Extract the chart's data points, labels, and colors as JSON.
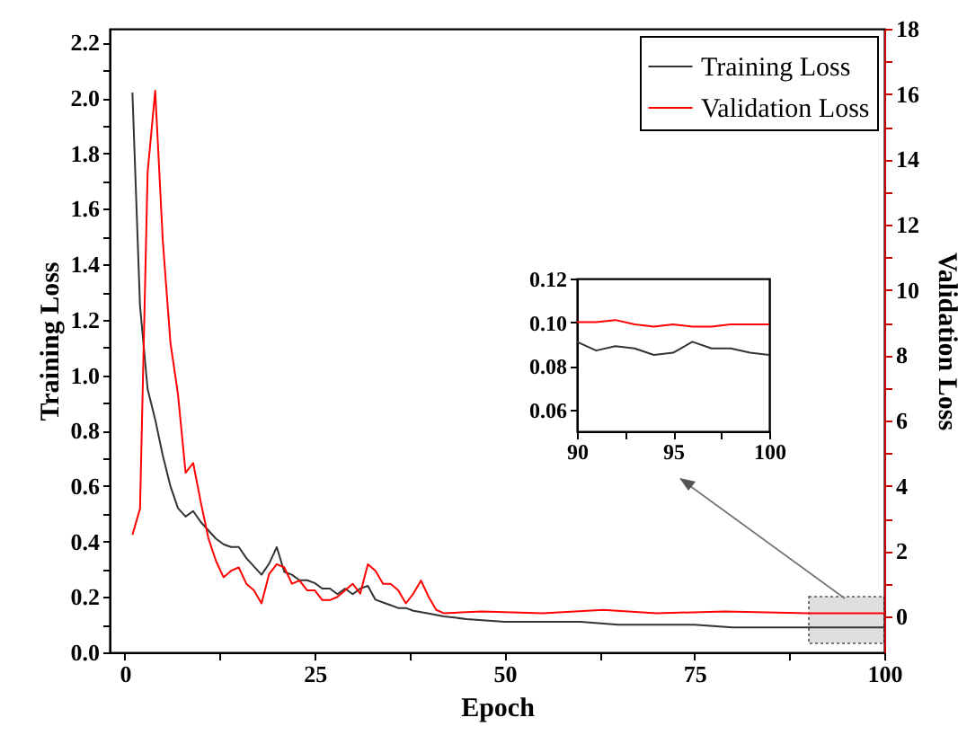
{
  "chart_data": [
    {
      "type": "line",
      "xlabel": "Epoch",
      "ylabel": "Training Loss",
      "y2label": "Validation Loss",
      "legend": "top right",
      "xlim": [
        -2,
        100
      ],
      "xticks": [
        0,
        {
          "value": 12.5,
          "label": null
        },
        25,
        {
          "value": 37.5,
          "label": null
        },
        50,
        {
          "value": 62.5,
          "label": null
        },
        75,
        {
          "value": 87.5,
          "label": null
        },
        100
      ],
      "ylim": [
        0,
        2.25
      ],
      "yticks": [
        {
          "value": 0,
          "label": "0.0"
        },
        {
          "value": 0.1,
          "label": null
        },
        0.2,
        {
          "value": 0.3,
          "label": null
        },
        0.4,
        {
          "value": 0.5,
          "label": null
        },
        0.6,
        {
          "value": 0.7,
          "label": null
        },
        0.8,
        {
          "value": 0.9,
          "label": null
        },
        {
          "value": 1,
          "label": "1.0"
        },
        {
          "value": 1.1,
          "label": null
        },
        1.2,
        {
          "value": 1.3,
          "label": null
        },
        1.4,
        {
          "value": 1.5,
          "label": null
        },
        1.6,
        {
          "value": 1.7,
          "label": null
        },
        1.8,
        {
          "value": 1.9,
          "label": null
        },
        {
          "value": 2,
          "label": "2.0"
        },
        {
          "value": 2.1,
          "label": null
        },
        2.2
      ],
      "y2lim": [
        -1.1,
        18
      ],
      "y2ticks": [
        0,
        {
          "value": 1,
          "label": null
        },
        2,
        {
          "value": 3,
          "label": null
        },
        4,
        {
          "value": 5,
          "label": null
        },
        6,
        {
          "value": 7,
          "label": null
        },
        8,
        {
          "value": 9,
          "label": null
        },
        10,
        {
          "value": 11,
          "label": null
        },
        12,
        {
          "value": 13,
          "label": null
        },
        14,
        {
          "value": 15,
          "label": null
        },
        16,
        {
          "value": 17,
          "label": null
        },
        18
      ],
      "series": [
        {
          "name": "Training Loss",
          "color": "#333333",
          "x": [
            1,
            2,
            3,
            4,
            5,
            6,
            7,
            8,
            9,
            10,
            11,
            12,
            13,
            14,
            15,
            16,
            17,
            18,
            19,
            20,
            21,
            22,
            23,
            24,
            25,
            26,
            27,
            28,
            29,
            30,
            31,
            32,
            33,
            34,
            35,
            36,
            37,
            38,
            40,
            42,
            45,
            50,
            55,
            60,
            65,
            70,
            75,
            80,
            85,
            90,
            100
          ],
          "values": [
            2.02,
            1.25,
            0.95,
            0.84,
            0.71,
            0.6,
            0.52,
            0.49,
            0.51,
            0.47,
            0.44,
            0.41,
            0.39,
            0.38,
            0.38,
            0.34,
            0.31,
            0.28,
            0.32,
            0.38,
            0.29,
            0.28,
            0.26,
            0.26,
            0.25,
            0.23,
            0.23,
            0.21,
            0.23,
            0.21,
            0.23,
            0.24,
            0.19,
            0.18,
            0.17,
            0.16,
            0.16,
            0.15,
            0.14,
            0.13,
            0.12,
            0.11,
            0.11,
            0.11,
            0.1,
            0.1,
            0.1,
            0.09,
            0.09,
            0.09,
            0.09
          ]
        },
        {
          "name": "Validation Loss",
          "color": "#ff0000",
          "axis": "y2",
          "x": [
            1,
            2,
            3,
            4,
            5,
            6,
            7,
            8,
            9,
            10,
            11,
            12,
            13,
            14,
            15,
            16,
            17,
            18,
            19,
            20,
            21,
            22,
            23,
            24,
            25,
            26,
            27,
            28,
            29,
            30,
            31,
            32,
            33,
            34,
            35,
            36,
            37,
            38,
            39,
            40,
            41,
            42,
            47,
            55,
            63,
            70,
            79,
            90,
            100
          ],
          "values": [
            2.5,
            3.3,
            13.6,
            16.1,
            11.5,
            8.4,
            6.8,
            4.4,
            4.7,
            3.5,
            2.4,
            1.7,
            1.2,
            1.4,
            1.5,
            1.0,
            0.8,
            0.4,
            1.3,
            1.6,
            1.5,
            1.0,
            1.1,
            0.8,
            0.8,
            0.5,
            0.5,
            0.6,
            0.8,
            1.0,
            0.7,
            1.6,
            1.4,
            1.0,
            1.0,
            0.8,
            0.4,
            0.7,
            1.1,
            0.6,
            0.2,
            0.1,
            0.15,
            0.1,
            0.2,
            0.1,
            0.15,
            0.1,
            0.1
          ]
        }
      ]
    },
    {
      "type": "line",
      "xlim": [
        90,
        100
      ],
      "xticks": [
        90,
        {
          "value": 92.5,
          "label": null
        },
        95,
        {
          "value": 97.5,
          "label": null
        },
        100
      ],
      "ylim": [
        0.05,
        0.12
      ],
      "yticks": [
        0.06,
        0.08,
        {
          "value": 0.1,
          "label": "0.10"
        },
        0.12
      ],
      "series": [
        {
          "color": "#333333",
          "x": [
            90,
            91,
            92,
            93,
            94,
            95,
            96,
            97,
            98,
            99,
            100
          ],
          "values": [
            0.091,
            0.087,
            0.089,
            0.088,
            0.085,
            0.086,
            0.091,
            0.088,
            0.088,
            0.086,
            0.085
          ]
        },
        {
          "color": "#ff0000",
          "x": [
            90,
            91,
            92,
            93,
            94,
            95,
            96,
            97,
            98,
            99,
            100
          ],
          "values": [
            0.1,
            0.1,
            0.101,
            0.099,
            0.098,
            0.099,
            0.098,
            0.098,
            0.099,
            0.099,
            0.099
          ]
        }
      ]
    }
  ]
}
